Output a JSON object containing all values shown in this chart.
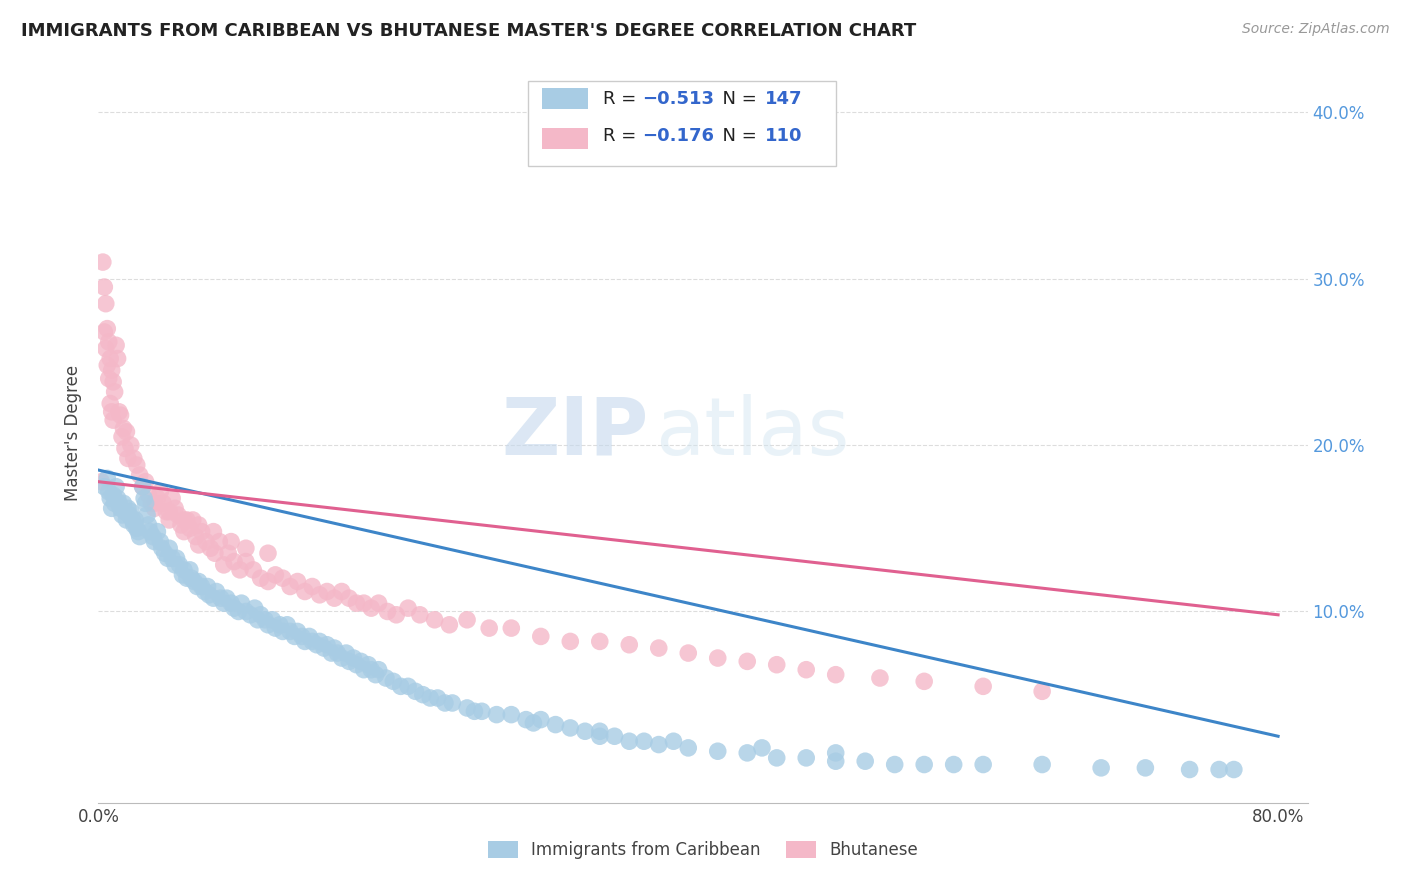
{
  "title": "IMMIGRANTS FROM CARIBBEAN VS BHUTANESE MASTER'S DEGREE CORRELATION CHART",
  "source": "Source: ZipAtlas.com",
  "ylabel": "Master's Degree",
  "ytick_labels": [
    "10.0%",
    "20.0%",
    "30.0%",
    "40.0%"
  ],
  "ytick_values": [
    0.1,
    0.2,
    0.3,
    0.4
  ],
  "xlim": [
    0.0,
    0.82
  ],
  "ylim": [
    -0.015,
    0.43
  ],
  "color_blue": "#a8cce4",
  "color_pink": "#f4b8c8",
  "color_line_blue": "#3d85c8",
  "color_line_pink": "#e06090",
  "color_r_text": "#3366cc",
  "watermark_zip": "ZIP",
  "watermark_atlas": "atlas",
  "legend_entries": [
    "Immigrants from Caribbean",
    "Bhutanese"
  ],
  "blue_line_x0": 0.0,
  "blue_line_y0": 0.185,
  "blue_line_x1": 0.8,
  "blue_line_y1": 0.025,
  "pink_line_x0": 0.0,
  "pink_line_y0": 0.178,
  "pink_line_x1": 0.8,
  "pink_line_y1": 0.098,
  "blue_x": [
    0.004,
    0.006,
    0.007,
    0.008,
    0.009,
    0.01,
    0.011,
    0.012,
    0.013,
    0.014,
    0.015,
    0.016,
    0.017,
    0.018,
    0.019,
    0.02,
    0.021,
    0.022,
    0.023,
    0.024,
    0.025,
    0.026,
    0.027,
    0.028,
    0.03,
    0.031,
    0.032,
    0.033,
    0.034,
    0.035,
    0.037,
    0.038,
    0.04,
    0.042,
    0.043,
    0.045,
    0.047,
    0.048,
    0.05,
    0.052,
    0.053,
    0.055,
    0.057,
    0.058,
    0.06,
    0.062,
    0.063,
    0.065,
    0.067,
    0.068,
    0.07,
    0.072,
    0.074,
    0.075,
    0.078,
    0.08,
    0.083,
    0.085,
    0.087,
    0.09,
    0.092,
    0.095,
    0.097,
    0.1,
    0.103,
    0.106,
    0.108,
    0.11,
    0.113,
    0.115,
    0.118,
    0.12,
    0.123,
    0.125,
    0.128,
    0.13,
    0.133,
    0.135,
    0.138,
    0.14,
    0.143,
    0.145,
    0.148,
    0.15,
    0.153,
    0.155,
    0.158,
    0.16,
    0.162,
    0.165,
    0.168,
    0.17,
    0.173,
    0.175,
    0.178,
    0.18,
    0.183,
    0.185,
    0.188,
    0.19,
    0.195,
    0.2,
    0.205,
    0.21,
    0.215,
    0.22,
    0.225,
    0.23,
    0.235,
    0.24,
    0.25,
    0.26,
    0.27,
    0.28,
    0.29,
    0.3,
    0.31,
    0.32,
    0.33,
    0.34,
    0.35,
    0.36,
    0.37,
    0.38,
    0.4,
    0.42,
    0.44,
    0.46,
    0.48,
    0.5,
    0.52,
    0.54,
    0.56,
    0.58,
    0.6,
    0.64,
    0.68,
    0.71,
    0.74,
    0.76,
    0.77,
    0.5,
    0.45,
    0.39,
    0.34,
    0.295,
    0.255
  ],
  "blue_y": [
    0.175,
    0.18,
    0.172,
    0.168,
    0.162,
    0.17,
    0.165,
    0.175,
    0.168,
    0.165,
    0.162,
    0.158,
    0.165,
    0.16,
    0.155,
    0.162,
    0.158,
    0.16,
    0.155,
    0.152,
    0.155,
    0.15,
    0.148,
    0.145,
    0.175,
    0.168,
    0.165,
    0.158,
    0.152,
    0.148,
    0.145,
    0.142,
    0.148,
    0.142,
    0.138,
    0.135,
    0.132,
    0.138,
    0.132,
    0.128,
    0.132,
    0.128,
    0.122,
    0.125,
    0.12,
    0.125,
    0.12,
    0.118,
    0.115,
    0.118,
    0.115,
    0.112,
    0.115,
    0.11,
    0.108,
    0.112,
    0.108,
    0.105,
    0.108,
    0.105,
    0.102,
    0.1,
    0.105,
    0.1,
    0.098,
    0.102,
    0.095,
    0.098,
    0.095,
    0.092,
    0.095,
    0.09,
    0.092,
    0.088,
    0.092,
    0.088,
    0.085,
    0.088,
    0.085,
    0.082,
    0.085,
    0.082,
    0.08,
    0.082,
    0.078,
    0.08,
    0.075,
    0.078,
    0.075,
    0.072,
    0.075,
    0.07,
    0.072,
    0.068,
    0.07,
    0.065,
    0.068,
    0.065,
    0.062,
    0.065,
    0.06,
    0.058,
    0.055,
    0.055,
    0.052,
    0.05,
    0.048,
    0.048,
    0.045,
    0.045,
    0.042,
    0.04,
    0.038,
    0.038,
    0.035,
    0.035,
    0.032,
    0.03,
    0.028,
    0.025,
    0.025,
    0.022,
    0.022,
    0.02,
    0.018,
    0.016,
    0.015,
    0.012,
    0.012,
    0.01,
    0.01,
    0.008,
    0.008,
    0.008,
    0.008,
    0.008,
    0.006,
    0.006,
    0.005,
    0.005,
    0.005,
    0.015,
    0.018,
    0.022,
    0.028,
    0.033,
    0.04
  ],
  "pink_x": [
    0.002,
    0.003,
    0.004,
    0.004,
    0.005,
    0.005,
    0.006,
    0.006,
    0.007,
    0.007,
    0.008,
    0.008,
    0.009,
    0.009,
    0.01,
    0.01,
    0.011,
    0.012,
    0.013,
    0.014,
    0.015,
    0.016,
    0.017,
    0.018,
    0.019,
    0.02,
    0.022,
    0.024,
    0.026,
    0.028,
    0.03,
    0.032,
    0.034,
    0.036,
    0.038,
    0.04,
    0.042,
    0.044,
    0.046,
    0.048,
    0.05,
    0.052,
    0.054,
    0.056,
    0.058,
    0.06,
    0.062,
    0.064,
    0.066,
    0.068,
    0.07,
    0.073,
    0.076,
    0.079,
    0.082,
    0.085,
    0.088,
    0.092,
    0.096,
    0.1,
    0.105,
    0.11,
    0.115,
    0.12,
    0.125,
    0.13,
    0.135,
    0.14,
    0.145,
    0.15,
    0.155,
    0.16,
    0.165,
    0.17,
    0.175,
    0.18,
    0.185,
    0.19,
    0.196,
    0.202,
    0.21,
    0.218,
    0.228,
    0.238,
    0.25,
    0.265,
    0.28,
    0.3,
    0.32,
    0.34,
    0.36,
    0.38,
    0.4,
    0.42,
    0.44,
    0.46,
    0.48,
    0.5,
    0.53,
    0.56,
    0.6,
    0.64,
    0.038,
    0.048,
    0.058,
    0.068,
    0.078,
    0.09,
    0.1,
    0.115
  ],
  "pink_y": [
    0.178,
    0.31,
    0.295,
    0.268,
    0.285,
    0.258,
    0.27,
    0.248,
    0.262,
    0.24,
    0.252,
    0.225,
    0.245,
    0.22,
    0.238,
    0.215,
    0.232,
    0.26,
    0.252,
    0.22,
    0.218,
    0.205,
    0.21,
    0.198,
    0.208,
    0.192,
    0.2,
    0.192,
    0.188,
    0.182,
    0.175,
    0.178,
    0.17,
    0.165,
    0.162,
    0.168,
    0.172,
    0.165,
    0.16,
    0.155,
    0.168,
    0.162,
    0.158,
    0.152,
    0.148,
    0.155,
    0.15,
    0.155,
    0.145,
    0.14,
    0.148,
    0.142,
    0.138,
    0.135,
    0.142,
    0.128,
    0.135,
    0.13,
    0.125,
    0.13,
    0.125,
    0.12,
    0.118,
    0.122,
    0.12,
    0.115,
    0.118,
    0.112,
    0.115,
    0.11,
    0.112,
    0.108,
    0.112,
    0.108,
    0.105,
    0.105,
    0.102,
    0.105,
    0.1,
    0.098,
    0.102,
    0.098,
    0.095,
    0.092,
    0.095,
    0.09,
    0.09,
    0.085,
    0.082,
    0.082,
    0.08,
    0.078,
    0.075,
    0.072,
    0.07,
    0.068,
    0.065,
    0.062,
    0.06,
    0.058,
    0.055,
    0.052,
    0.165,
    0.16,
    0.155,
    0.152,
    0.148,
    0.142,
    0.138,
    0.135
  ]
}
